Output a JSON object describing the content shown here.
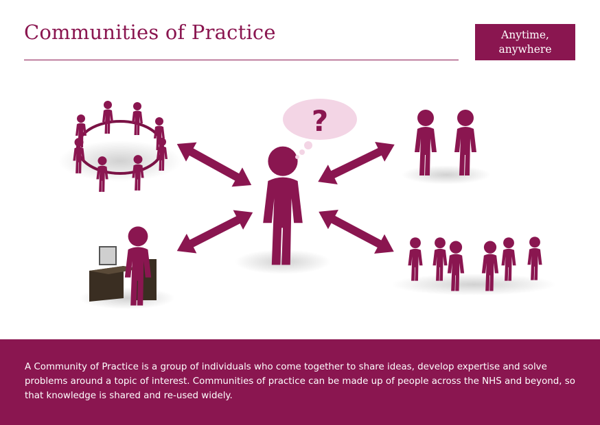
{
  "header": {
    "title": "Communities of Practice",
    "badge_line1": "Anytime,",
    "badge_line2": "anywhere"
  },
  "diagram": {
    "center_symbol": "?",
    "nodes": [
      "person-in-circle-group",
      "pair-of-people",
      "person-at-computer",
      "people-talking-group"
    ],
    "figure_color": "#8a1650",
    "arrow_color": "#8a1650",
    "bubble_color": "#f3d5e5"
  },
  "footer": {
    "text": "A Community of Practice is a group of individuals who come together to share ideas, develop expertise and solve problems around a topic of interest. Communities of  practice can be made up of people across the NHS and beyond, so that knowledge is shared and re-used widely.",
    "background": "#8a1650"
  }
}
